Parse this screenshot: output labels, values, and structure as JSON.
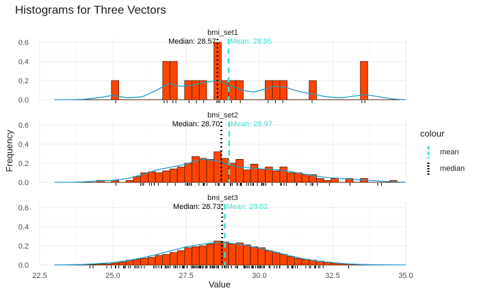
{
  "chart_data": {
    "type": "histogram",
    "title": "Histograms for Three Vectors",
    "xlabel": "Value",
    "ylabel": "Frequency",
    "xlim": [
      22.5,
      35.0
    ],
    "ylim": [
      0,
      0.65
    ],
    "x_ticks": [
      "22.5",
      "25.0",
      "27.5",
      "30.0",
      "32.5",
      "35.0"
    ],
    "y_ticks": [
      "0.0",
      "0.2",
      "0.4",
      "0.6"
    ],
    "bar_fill": "#ff4500",
    "bar_stroke": "#4a1a00",
    "density_color": "#1f9bc9",
    "mean_color": "#40e0d0",
    "median_color": "#000000",
    "legend": {
      "title": "colour",
      "items": [
        {
          "label": "mean",
          "color": "#40e0d0"
        },
        {
          "label": "median",
          "color": "#000000"
        }
      ]
    },
    "panels": [
      {
        "name": "bmi_set1",
        "median": 28.57,
        "mean": 28.95,
        "median_label": "Median: 28.57",
        "mean_label": "Mean: 28.95",
        "bins": [
          [
            24.95,
            25.2,
            0.2
          ],
          [
            26.7,
            26.95,
            0.4
          ],
          [
            26.95,
            27.2,
            0.4
          ],
          [
            27.45,
            27.7,
            0.2
          ],
          [
            27.7,
            27.95,
            0.2
          ],
          [
            27.95,
            28.2,
            0.2
          ],
          [
            28.45,
            28.7,
            0.6
          ],
          [
            28.7,
            28.95,
            0.2
          ],
          [
            28.95,
            29.2,
            0.2
          ],
          [
            29.2,
            29.45,
            0.2
          ],
          [
            30.2,
            30.45,
            0.2
          ],
          [
            30.45,
            30.7,
            0.2
          ],
          [
            30.7,
            30.95,
            0.2
          ],
          [
            31.7,
            31.95,
            0.2
          ],
          [
            33.45,
            33.7,
            0.4
          ]
        ],
        "density": [
          [
            23.0,
            0.0
          ],
          [
            23.5,
            0.0
          ],
          [
            24.0,
            0.005
          ],
          [
            24.5,
            0.02
          ],
          [
            25.0,
            0.045
          ],
          [
            25.5,
            0.02
          ],
          [
            26.0,
            0.03
          ],
          [
            26.5,
            0.1
          ],
          [
            26.9,
            0.17
          ],
          [
            27.3,
            0.14
          ],
          [
            27.7,
            0.15
          ],
          [
            28.1,
            0.18
          ],
          [
            28.6,
            0.2
          ],
          [
            29.0,
            0.15
          ],
          [
            29.4,
            0.1
          ],
          [
            29.8,
            0.08
          ],
          [
            30.2,
            0.11
          ],
          [
            30.5,
            0.14
          ],
          [
            30.9,
            0.13
          ],
          [
            31.3,
            0.09
          ],
          [
            31.8,
            0.06
          ],
          [
            32.3,
            0.03
          ],
          [
            32.8,
            0.02
          ],
          [
            33.3,
            0.04
          ],
          [
            33.6,
            0.055
          ],
          [
            34.0,
            0.035
          ],
          [
            34.5,
            0.01
          ],
          [
            35.0,
            0.0
          ]
        ],
        "rug": [
          25.1,
          26.75,
          26.85,
          27.05,
          27.15,
          27.6,
          27.85,
          28.1,
          28.55,
          28.6,
          28.65,
          28.8,
          29.05,
          29.35,
          30.3,
          30.55,
          30.8,
          31.8,
          33.5,
          33.6
        ]
      },
      {
        "name": "bmi_set2",
        "median": 28.7,
        "mean": 28.97,
        "median_label": "Median: 28.70",
        "mean_label": "Mean: 28.97",
        "bins": [
          [
            24.45,
            24.7,
            0.02
          ],
          [
            24.95,
            25.2,
            0.02
          ],
          [
            25.45,
            25.7,
            0.02
          ],
          [
            25.7,
            25.95,
            0.06
          ],
          [
            25.95,
            26.2,
            0.1
          ],
          [
            26.2,
            26.45,
            0.11
          ],
          [
            26.45,
            26.7,
            0.1
          ],
          [
            26.7,
            26.95,
            0.12
          ],
          [
            26.95,
            27.2,
            0.14
          ],
          [
            27.2,
            27.45,
            0.16
          ],
          [
            27.45,
            27.7,
            0.2
          ],
          [
            27.7,
            27.95,
            0.27
          ],
          [
            27.95,
            28.2,
            0.25
          ],
          [
            28.2,
            28.45,
            0.24
          ],
          [
            28.45,
            28.7,
            0.32
          ],
          [
            28.7,
            28.95,
            0.25
          ],
          [
            28.95,
            29.2,
            0.2
          ],
          [
            29.2,
            29.45,
            0.24
          ],
          [
            29.45,
            29.7,
            0.13
          ],
          [
            29.7,
            29.95,
            0.19
          ],
          [
            29.95,
            30.2,
            0.14
          ],
          [
            30.2,
            30.45,
            0.16
          ],
          [
            30.45,
            30.7,
            0.12
          ],
          [
            30.7,
            30.95,
            0.16
          ],
          [
            30.95,
            31.2,
            0.1
          ],
          [
            31.2,
            31.45,
            0.1
          ],
          [
            31.45,
            31.7,
            0.08
          ],
          [
            31.7,
            31.95,
            0.08
          ],
          [
            31.95,
            32.2,
            0.04
          ],
          [
            32.2,
            32.45,
            0.02
          ],
          [
            32.45,
            32.7,
            0.04
          ],
          [
            32.95,
            33.2,
            0.04
          ],
          [
            33.45,
            33.7,
            0.04
          ],
          [
            34.45,
            34.7,
            0.02
          ]
        ],
        "density": [
          [
            23.0,
            0.0
          ],
          [
            23.5,
            0.0
          ],
          [
            24.0,
            0.005
          ],
          [
            24.5,
            0.015
          ],
          [
            25.0,
            0.02
          ],
          [
            25.5,
            0.04
          ],
          [
            26.0,
            0.08
          ],
          [
            26.5,
            0.13
          ],
          [
            27.0,
            0.16
          ],
          [
            27.5,
            0.19
          ],
          [
            28.0,
            0.24
          ],
          [
            28.5,
            0.23
          ],
          [
            28.9,
            0.19
          ],
          [
            29.3,
            0.16
          ],
          [
            29.7,
            0.15
          ],
          [
            30.1,
            0.14
          ],
          [
            30.5,
            0.135
          ],
          [
            30.9,
            0.12
          ],
          [
            31.3,
            0.1
          ],
          [
            31.8,
            0.07
          ],
          [
            32.3,
            0.05
          ],
          [
            32.8,
            0.04
          ],
          [
            33.3,
            0.03
          ],
          [
            33.8,
            0.02
          ],
          [
            34.3,
            0.01
          ],
          [
            35.0,
            0.0
          ]
        ],
        "rug_range": [
          24.5,
          34.5,
          70
        ]
      },
      {
        "name": "bmi_set3",
        "median": 28.73,
        "mean": 28.82,
        "median_label": "Median: 28.73",
        "mean_label": "Mean: 28.82",
        "bins": [
          [
            24.2,
            24.45,
            0.005
          ],
          [
            24.45,
            24.7,
            0.01
          ],
          [
            24.7,
            24.95,
            0.01
          ],
          [
            24.95,
            25.2,
            0.02
          ],
          [
            25.2,
            25.45,
            0.03
          ],
          [
            25.45,
            25.7,
            0.05
          ],
          [
            25.7,
            25.95,
            0.06
          ],
          [
            25.95,
            26.2,
            0.07
          ],
          [
            26.2,
            26.45,
            0.08
          ],
          [
            26.45,
            26.7,
            0.1
          ],
          [
            26.7,
            26.95,
            0.11
          ],
          [
            26.95,
            27.2,
            0.13
          ],
          [
            27.2,
            27.45,
            0.15
          ],
          [
            27.45,
            27.7,
            0.18
          ],
          [
            27.7,
            27.95,
            0.19
          ],
          [
            27.95,
            28.2,
            0.2
          ],
          [
            28.2,
            28.45,
            0.22
          ],
          [
            28.45,
            28.7,
            0.25
          ],
          [
            28.7,
            28.95,
            0.24
          ],
          [
            28.95,
            29.2,
            0.22
          ],
          [
            29.2,
            29.45,
            0.23
          ],
          [
            29.45,
            29.7,
            0.21
          ],
          [
            29.7,
            29.95,
            0.19
          ],
          [
            29.95,
            30.2,
            0.18
          ],
          [
            30.2,
            30.45,
            0.15
          ],
          [
            30.45,
            30.7,
            0.13
          ],
          [
            30.7,
            30.95,
            0.11
          ],
          [
            30.95,
            31.2,
            0.09
          ],
          [
            31.2,
            31.45,
            0.07
          ],
          [
            31.45,
            31.7,
            0.06
          ],
          [
            31.7,
            31.95,
            0.05
          ],
          [
            31.95,
            32.2,
            0.04
          ],
          [
            32.2,
            32.45,
            0.03
          ],
          [
            32.45,
            32.7,
            0.02
          ],
          [
            32.7,
            32.95,
            0.015
          ],
          [
            32.95,
            33.2,
            0.01
          ],
          [
            33.2,
            33.45,
            0.005
          ],
          [
            33.45,
            33.7,
            0.005
          ]
        ],
        "density": [
          [
            23.0,
            0.0
          ],
          [
            23.5,
            0.002
          ],
          [
            24.0,
            0.006
          ],
          [
            24.5,
            0.014
          ],
          [
            25.0,
            0.025
          ],
          [
            25.5,
            0.045
          ],
          [
            26.0,
            0.075
          ],
          [
            26.5,
            0.11
          ],
          [
            27.0,
            0.15
          ],
          [
            27.5,
            0.19
          ],
          [
            28.0,
            0.215
          ],
          [
            28.5,
            0.235
          ],
          [
            28.8,
            0.235
          ],
          [
            29.2,
            0.22
          ],
          [
            29.6,
            0.2
          ],
          [
            30.0,
            0.175
          ],
          [
            30.5,
            0.14
          ],
          [
            31.0,
            0.1
          ],
          [
            31.5,
            0.065
          ],
          [
            32.0,
            0.04
          ],
          [
            32.5,
            0.025
          ],
          [
            33.0,
            0.012
          ],
          [
            33.5,
            0.005
          ],
          [
            34.0,
            0.002
          ],
          [
            35.0,
            0.0
          ]
        ],
        "rug_range": [
          23.0,
          34.0,
          140
        ]
      }
    ]
  }
}
